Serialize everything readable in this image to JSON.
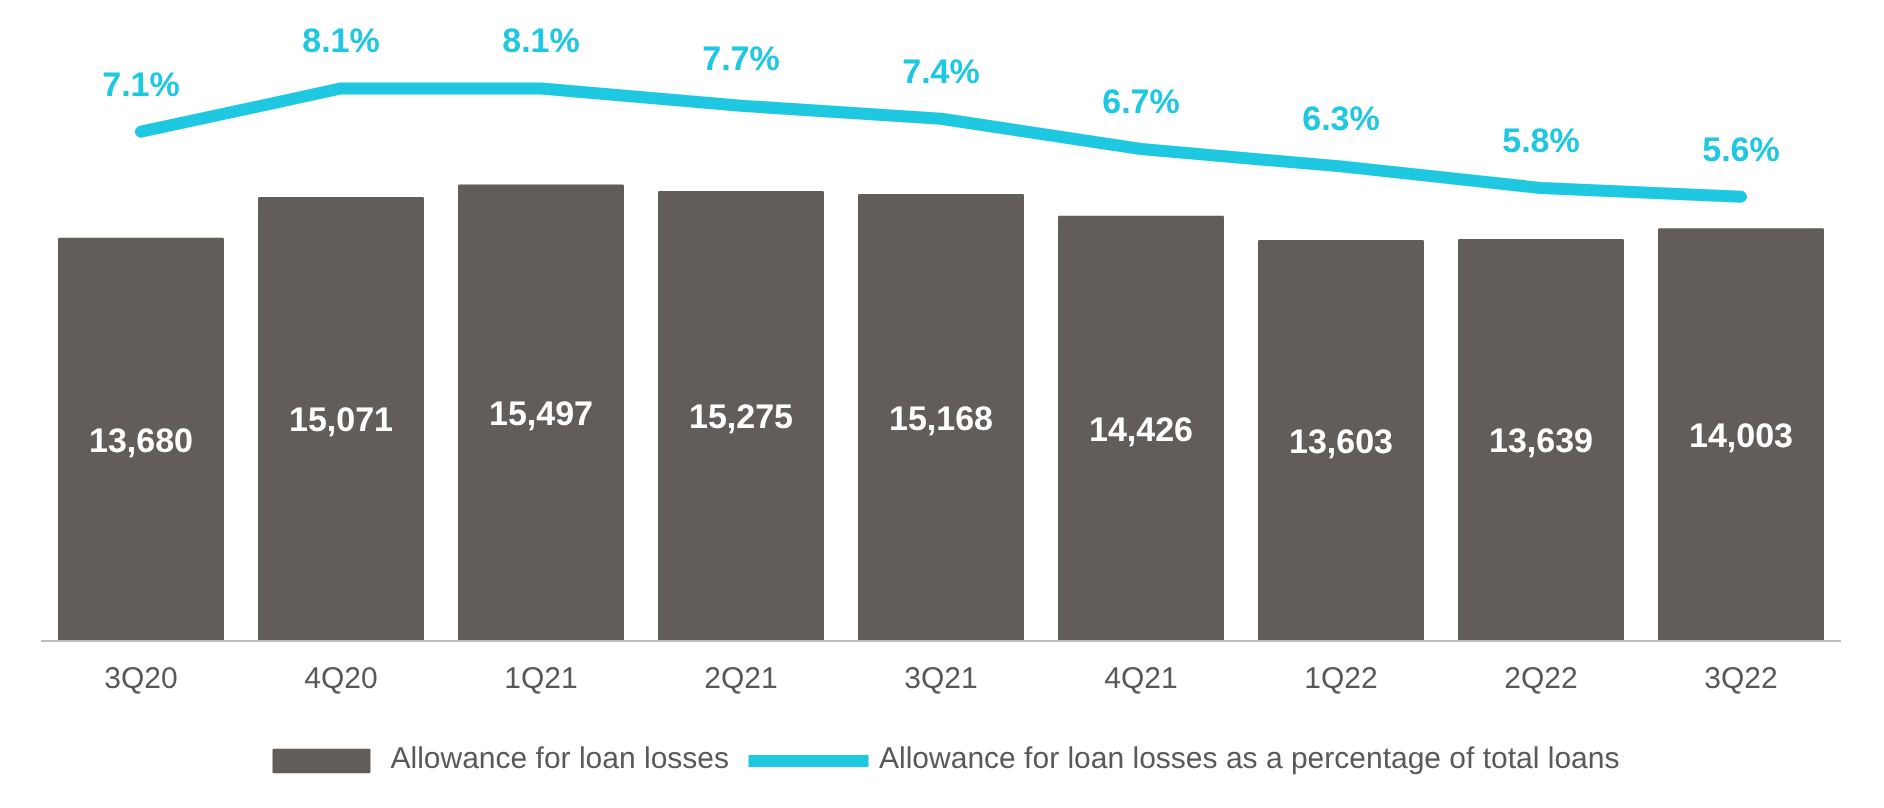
{
  "chart_data": {
    "type": "bar",
    "categories": [
      "3Q20",
      "4Q20",
      "1Q21",
      "2Q21",
      "3Q21",
      "4Q21",
      "1Q22",
      "2Q22",
      "3Q22"
    ],
    "series": [
      {
        "name": "Allowance for loan losses",
        "color": "#625d59",
        "values": [
          13680,
          15071,
          15497,
          15275,
          15168,
          14426,
          13603,
          13639,
          14003
        ],
        "value_labels": [
          "13,680",
          "15,071",
          "15,497",
          "15,275",
          "15,168",
          "14,426",
          "13,603",
          "13,639",
          "14,003"
        ]
      },
      {
        "name": "Allowance for loan losses as a percentage of total loans",
        "type": "line",
        "axis": "y2",
        "color": "#1ec8e0",
        "values": [
          7.1,
          8.1,
          8.1,
          7.7,
          7.4,
          6.7,
          6.3,
          5.8,
          5.6
        ],
        "value_labels": [
          "7.1%",
          "8.1%",
          "8.1%",
          "7.7%",
          "7.4%",
          "6.7%",
          "6.3%",
          "5.8%",
          "5.6%"
        ]
      }
    ],
    "tick_labels": "x",
    "legend": "bottom",
    "line_style": "solid"
  }
}
